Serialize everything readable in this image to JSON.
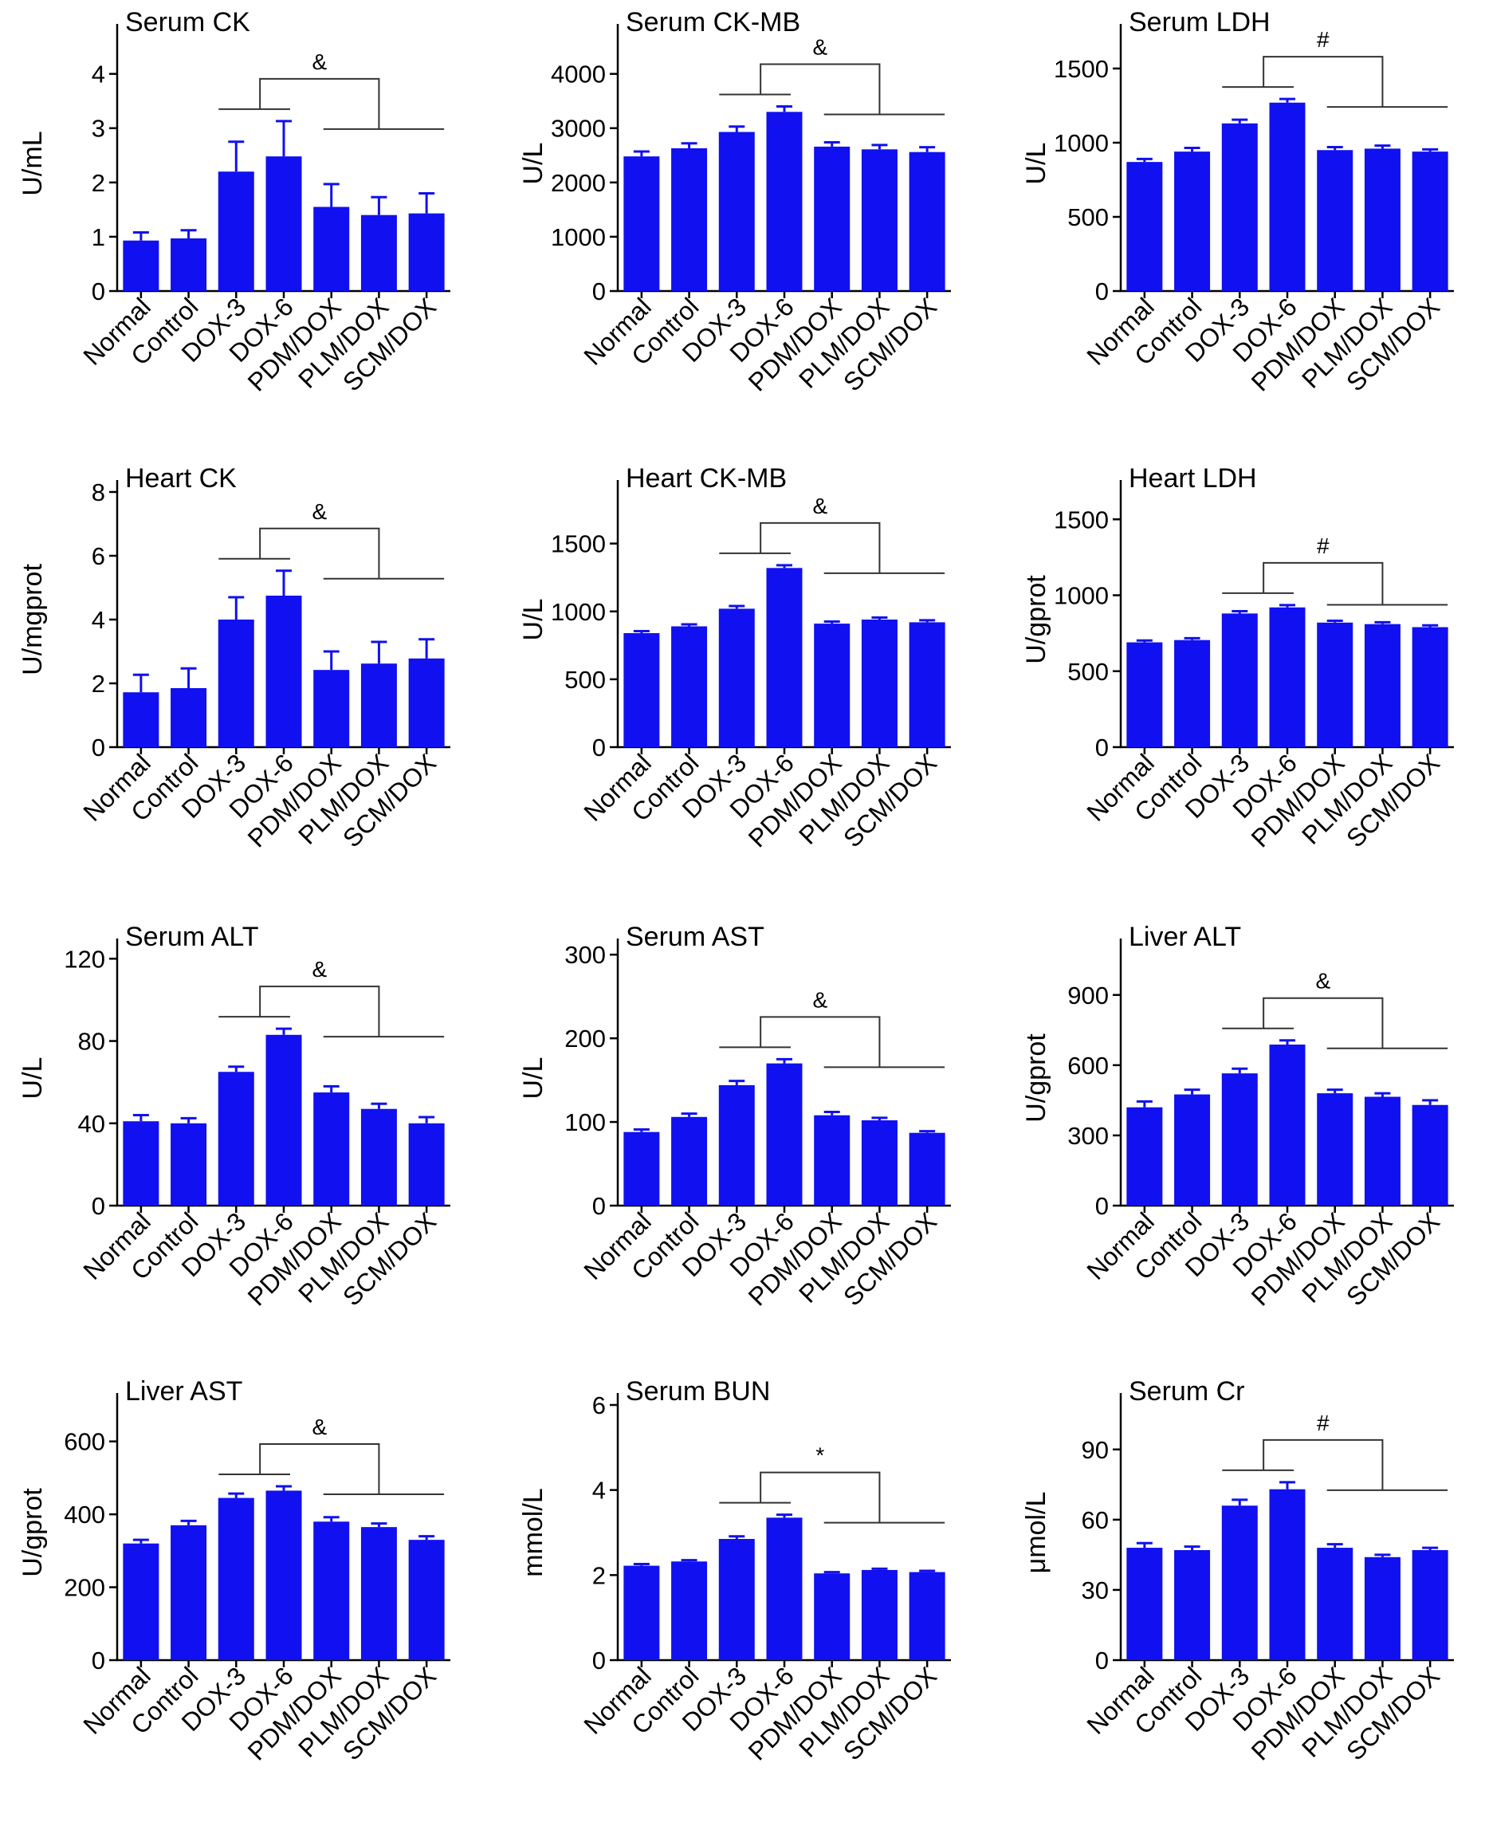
{
  "figure": {
    "bar_color": "#1010f0",
    "axis_color": "#000000",
    "bracket_color": "#333333"
  },
  "chart_data": [
    {
      "type": "bar",
      "title": "Serum CK",
      "ylabel": "U/mL",
      "categories": [
        "Normal",
        "Control",
        "DOX-3",
        "DOX-6",
        "PDM/DOX",
        "PLM/DOX",
        "SCM/DOX"
      ],
      "values": [
        0.93,
        0.97,
        2.2,
        2.48,
        1.55,
        1.4,
        1.43
      ],
      "errors": [
        0.15,
        0.15,
        0.55,
        0.65,
        0.42,
        0.33,
        0.37
      ],
      "ylim": [
        0,
        4.7
      ],
      "yticks": [
        0,
        1,
        2,
        3,
        4
      ],
      "ytick_labels": [
        "0",
        "1",
        "2",
        "3",
        "4"
      ],
      "significance": "&"
    },
    {
      "type": "bar",
      "title": "Serum CK-MB",
      "ylabel": "U/L",
      "categories": [
        "Normal",
        "Control",
        "DOX-3",
        "DOX-6",
        "PDM/DOX",
        "PLM/DOX",
        "SCM/DOX"
      ],
      "values": [
        2480,
        2630,
        2930,
        3300,
        2660,
        2610,
        2560
      ],
      "errors": [
        90,
        90,
        100,
        100,
        80,
        80,
        90
      ],
      "ylim": [
        0,
        4700
      ],
      "yticks": [
        0,
        1000,
        2000,
        3000,
        4000
      ],
      "ytick_labels": [
        "0",
        "1000",
        "2000",
        "3000",
        "4000"
      ],
      "significance": "&"
    },
    {
      "type": "bar",
      "title": "Serum LDH",
      "ylabel": "U/L",
      "categories": [
        "Normal",
        "Control",
        "DOX-3",
        "DOX-6",
        "PDM/DOX",
        "PLM/DOX",
        "SCM/DOX"
      ],
      "values": [
        870,
        940,
        1130,
        1270,
        950,
        960,
        940
      ],
      "errors": [
        20,
        25,
        25,
        25,
        20,
        20,
        15
      ],
      "ylim": [
        0,
        1720
      ],
      "yticks": [
        0,
        500,
        1000,
        1500
      ],
      "ytick_labels": [
        "0",
        "500",
        "1000",
        "1500"
      ],
      "significance": "#"
    },
    {
      "type": "bar",
      "title": "Heart CK",
      "ylabel": "U/mgprot",
      "categories": [
        "Normal",
        "Control",
        "DOX-3",
        "DOX-6",
        "PDM/DOX",
        "PLM/DOX",
        "SCM/DOX"
      ],
      "values": [
        1.72,
        1.85,
        4.0,
        4.75,
        2.42,
        2.62,
        2.78
      ],
      "errors": [
        0.55,
        0.62,
        0.7,
        0.78,
        0.58,
        0.68,
        0.6
      ],
      "ylim": [
        0,
        8
      ],
      "yticks": [
        0,
        2,
        4,
        6,
        8
      ],
      "ytick_labels": [
        "0",
        "2",
        "4",
        "6",
        "8"
      ],
      "significance": "&"
    },
    {
      "type": "bar",
      "title": "Heart CK-MB",
      "ylabel": "U/L",
      "categories": [
        "Normal",
        "Control",
        "DOX-3",
        "DOX-6",
        "PDM/DOX",
        "PLM/DOX",
        "SCM/DOX"
      ],
      "values": [
        840,
        890,
        1020,
        1320,
        910,
        940,
        920
      ],
      "errors": [
        15,
        15,
        20,
        20,
        15,
        15,
        15
      ],
      "ylim": [
        0,
        1880
      ],
      "yticks": [
        0,
        500,
        1000,
        1500
      ],
      "ytick_labels": [
        "0",
        "500",
        "1000",
        "1500"
      ],
      "significance": "&"
    },
    {
      "type": "bar",
      "title": "Heart LDH",
      "ylabel": "U/gprot",
      "categories": [
        "Normal",
        "Control",
        "DOX-3",
        "DOX-6",
        "PDM/DOX",
        "PLM/DOX",
        "SCM/DOX"
      ],
      "values": [
        690,
        705,
        880,
        920,
        820,
        810,
        790
      ],
      "errors": [
        12,
        12,
        15,
        15,
        12,
        12,
        12
      ],
      "ylim": [
        0,
        1680
      ],
      "yticks": [
        0,
        500,
        1000,
        1500
      ],
      "ytick_labels": [
        "0",
        "500",
        "1000",
        "1500"
      ],
      "significance": "#"
    },
    {
      "type": "bar",
      "title": "Serum ALT",
      "ylabel": "U/L",
      "categories": [
        "Normal",
        "Control",
        "DOX-3",
        "DOX-6",
        "PDM/DOX",
        "PLM/DOX",
        "SCM/DOX"
      ],
      "values": [
        41,
        40,
        65,
        83,
        55,
        47,
        40
      ],
      "errors": [
        3,
        2.5,
        2.5,
        3,
        3,
        2.5,
        3
      ],
      "ylim": [
        0,
        124
      ],
      "yticks": [
        0,
        40,
        80,
        120
      ],
      "ytick_labels": [
        "0",
        "40",
        "80",
        "120"
      ],
      "significance": "&"
    },
    {
      "type": "bar",
      "title": "Serum AST",
      "ylabel": "U/L",
      "categories": [
        "Normal",
        "Control",
        "DOX-3",
        "DOX-6",
        "PDM/DOX",
        "PLM/DOX",
        "SCM/DOX"
      ],
      "values": [
        88,
        106,
        144,
        170,
        108,
        102,
        87
      ],
      "errors": [
        3,
        4,
        5,
        5,
        4,
        3,
        2
      ],
      "ylim": [
        0,
        305
      ],
      "yticks": [
        0,
        100,
        200,
        300
      ],
      "ytick_labels": [
        "0",
        "100",
        "200",
        "300"
      ],
      "significance": "&"
    },
    {
      "type": "bar",
      "title": "Liver ALT",
      "ylabel": "U/gprot",
      "categories": [
        "Normal",
        "Control",
        "DOX-3",
        "DOX-6",
        "PDM/DOX",
        "PLM/DOX",
        "SCM/DOX"
      ],
      "values": [
        420,
        475,
        565,
        688,
        480,
        465,
        430
      ],
      "errors": [
        25,
        20,
        20,
        18,
        15,
        15,
        20
      ],
      "ylim": [
        0,
        1090
      ],
      "yticks": [
        0,
        300,
        600,
        900
      ],
      "ytick_labels": [
        "0",
        "300",
        "600",
        "900"
      ],
      "significance": "&"
    },
    {
      "type": "bar",
      "title": "Liver AST",
      "ylabel": "U/gprot",
      "categories": [
        "Normal",
        "Control",
        "DOX-3",
        "DOX-6",
        "PDM/DOX",
        "PLM/DOX",
        "SCM/DOX"
      ],
      "values": [
        320,
        370,
        445,
        465,
        380,
        365,
        330
      ],
      "errors": [
        10,
        12,
        12,
        12,
        12,
        10,
        10
      ],
      "ylim": [
        0,
        700
      ],
      "yticks": [
        0,
        200,
        400,
        600
      ],
      "ytick_labels": [
        "0",
        "200",
        "400",
        "600"
      ],
      "significance": "&"
    },
    {
      "type": "bar",
      "title": "Serum BUN",
      "ylabel": "mmol/L",
      "categories": [
        "Normal",
        "Control",
        "DOX-3",
        "DOX-6",
        "PDM/DOX",
        "PLM/DOX",
        "SCM/DOX"
      ],
      "values": [
        2.22,
        2.32,
        2.85,
        3.35,
        2.04,
        2.12,
        2.07
      ],
      "errors": [
        0.04,
        0.03,
        0.06,
        0.07,
        0.03,
        0.03,
        0.03
      ],
      "ylim": [
        0,
        6
      ],
      "yticks": [
        0,
        2,
        4,
        6
      ],
      "ytick_labels": [
        "0",
        "2",
        "4",
        "6"
      ],
      "significance": "*"
    },
    {
      "type": "bar",
      "title": "Serum Cr",
      "ylabel": "μmol/L",
      "categories": [
        "Normal",
        "Control",
        "DOX-3",
        "DOX-6",
        "PDM/DOX",
        "PLM/DOX",
        "SCM/DOX"
      ],
      "values": [
        48,
        47,
        66,
        73,
        48,
        44,
        47
      ],
      "errors": [
        2,
        1.5,
        2.5,
        3,
        1.5,
        1,
        1
      ],
      "ylim": [
        0,
        109
      ],
      "yticks": [
        0,
        30,
        60,
        90
      ],
      "ytick_labels": [
        "0",
        "30",
        "60",
        "90"
      ],
      "significance": "#"
    }
  ]
}
